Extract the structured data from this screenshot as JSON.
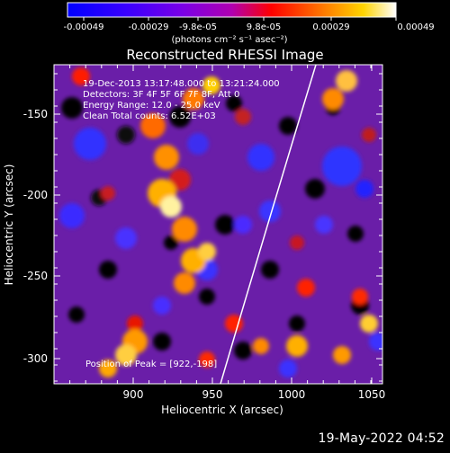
{
  "colorbar": {
    "tick_labels": [
      "-0.00049",
      "-0.00029",
      "-9.8e-05",
      "9.8e-05",
      "0.00029",
      "0.00049"
    ],
    "units": "(photons cm⁻² s⁻¹ asec⁻²)",
    "colormap": [
      "#0000ff",
      "#3a00ff",
      "#7a00e6",
      "#b000b0",
      "#ff0000",
      "#ff7a00",
      "#ffd400",
      "#ffffff"
    ]
  },
  "plot": {
    "title": "Reconstructed RHESSI Image",
    "xlabel": "Heliocentric X (arcsec)",
    "ylabel": "Heliocentric Y (arcsec)",
    "x_ticks": [
      "900",
      "950",
      "1000",
      "1050"
    ],
    "y_ticks": [
      "-150",
      "-200",
      "-250",
      "-300"
    ],
    "info_lines": [
      "19-Dec-2013 13:17:48.000 to 13:21:24.000",
      "Detectors: 3F 4F 5F 6F 7F 8F, Att 0",
      "Energy Range: 12.0 - 25.0 keV",
      "Clean     Total counts: 6.52E+03"
    ],
    "peak_label": "Position of Peak = [922,-198]"
  },
  "footer": {
    "timestamp": "19-May-2022 04:52"
  }
}
